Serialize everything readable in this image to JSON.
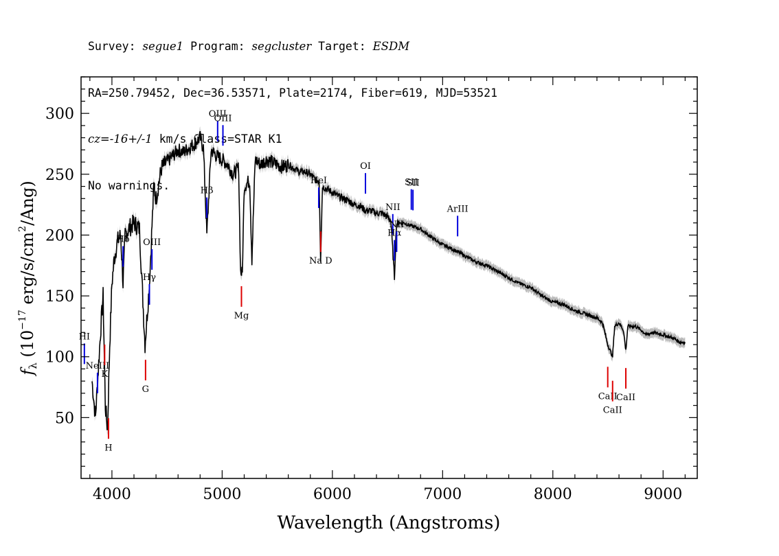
{
  "header": {
    "line1": {
      "survey_label": "Survey: ",
      "survey": "segue1",
      "program_label": " Program: ",
      "program": "segcluster",
      "target_label": " Target: ",
      "target": "ESDM"
    },
    "line2": "RA=250.79452, Dec=36.53571, Plate=2174, Fiber=619, MJD=53521",
    "line3": {
      "cz_label": "cz=",
      "cz": "-16+/-1",
      "rest": " km/s Class=STAR K1"
    },
    "line4": "No warnings."
  },
  "chart_data": {
    "type": "line",
    "title": "",
    "xlabel": "Wavelength (Angstroms)",
    "ylabel": "fλ (10^-17 erg/s/cm^2/Ang)",
    "xlim": [
      3720,
      9310
    ],
    "ylim": [
      0,
      330
    ],
    "xticks": [
      4000,
      5000,
      6000,
      7000,
      8000,
      9000
    ],
    "yticks": [
      50,
      100,
      150,
      200,
      250,
      300
    ],
    "series": [
      {
        "x": [
          3820,
          3850,
          3880,
          3900,
          3920,
          3940,
          3960,
          3980,
          4000,
          4020,
          4050,
          4080,
          4101,
          4120,
          4150,
          4200,
          4250,
          4300,
          4340,
          4380,
          4400,
          4450,
          4500,
          4550,
          4600,
          4650,
          4700,
          4750,
          4800,
          4830,
          4861,
          4900,
          4950,
          5000,
          5050,
          5100,
          5150,
          5167,
          5183,
          5200,
          5250,
          5270,
          5300,
          5350,
          5400,
          5450,
          5500,
          5550,
          5600,
          5650,
          5700,
          5750,
          5800,
          5850,
          5880,
          5893,
          5910,
          5950,
          6000,
          6050,
          6100,
          6150,
          6200,
          6250,
          6300,
          6350,
          6400,
          6450,
          6500,
          6530,
          6563,
          6580,
          6600,
          6650,
          6700,
          6800,
          6900,
          7000,
          7100,
          7200,
          7300,
          7400,
          7500,
          7600,
          7700,
          7800,
          7900,
          8000,
          8100,
          8200,
          8300,
          8400,
          8450,
          8498,
          8542,
          8560,
          8600,
          8640,
          8662,
          8680,
          8750,
          8800,
          8850,
          8900,
          9000,
          9100,
          9150,
          9200
        ],
        "y": [
          80,
          50,
          95,
          125,
          150,
          60,
          40,
          110,
          160,
          180,
          195,
          200,
          160,
          200,
          205,
          210,
          205,
          110,
          160,
          240,
          230,
          255,
          260,
          265,
          270,
          268,
          272,
          275,
          280,
          272,
          200,
          270,
          265,
          262,
          258,
          250,
          255,
          170,
          168,
          240,
          245,
          180,
          262,
          258,
          262,
          260,
          258,
          256,
          258,
          255,
          252,
          252,
          250,
          245,
          245,
          180,
          240,
          238,
          235,
          232,
          230,
          228,
          225,
          224,
          220,
          220,
          218,
          218,
          215,
          212,
          165,
          208,
          210,
          210,
          208,
          205,
          198,
          192,
          188,
          183,
          178,
          175,
          170,
          165,
          160,
          157,
          150,
          145,
          143,
          138,
          135,
          132,
          128,
          110,
          100,
          125,
          128,
          122,
          105,
          125,
          125,
          122,
          118,
          120,
          118,
          115,
          112,
          112
        ]
      }
    ],
    "emission_lines": [
      {
        "label": "Hβ",
        "wave": 4861
      },
      {
        "label": "OIII",
        "wave": 4959
      },
      {
        "label": "OIII",
        "wave": 5007
      },
      {
        "label": "Hγ",
        "wave": 4340
      },
      {
        "label": "OIII",
        "wave": 4363
      },
      {
        "label": "Hδ",
        "wave": 4101
      },
      {
        "label": "HeI",
        "wave": 5876
      },
      {
        "label": "OI",
        "wave": 6300
      },
      {
        "label": "NII",
        "wave": 6548
      },
      {
        "label": "Hα",
        "wave": 6563
      },
      {
        "label": "NII",
        "wave": 6583
      },
      {
        "label": "SII",
        "wave": 6716
      },
      {
        "label": "SII",
        "wave": 6731
      },
      {
        "label": "ArIII",
        "wave": 7136
      },
      {
        "label": "NeIII",
        "wave": 3869
      },
      {
        "label": "HI",
        "wave": 3750
      }
    ],
    "absorption_lines": [
      {
        "label": "K",
        "wave": 3934
      },
      {
        "label": "H",
        "wave": 3969
      },
      {
        "label": "G",
        "wave": 4305
      },
      {
        "label": "Mg",
        "wave": 5175
      },
      {
        "label": "Na D",
        "wave": 5894
      },
      {
        "label": "CaII",
        "wave": 8498
      },
      {
        "label": "CaII",
        "wave": 8542
      },
      {
        "label": "CaII",
        "wave": 8662
      }
    ],
    "colors": {
      "spectrum": "#000000",
      "error_band": "#bbbbbb",
      "emission": "#0000dd",
      "absorption": "#dd0000"
    }
  }
}
